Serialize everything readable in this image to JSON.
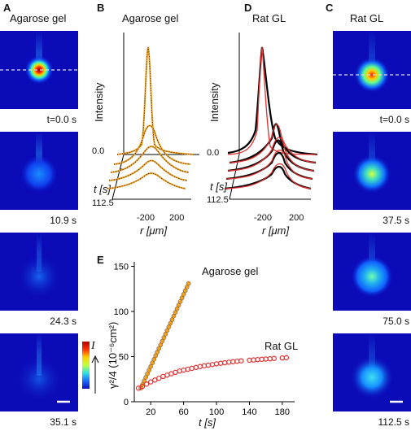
{
  "panels": {
    "A": {
      "label": "A",
      "title": "Agarose gel",
      "times": [
        "t=0.0 s",
        "10.9 s",
        "24.3 s",
        "35.1 s"
      ]
    },
    "B": {
      "label": "B",
      "title": "Agarose gel",
      "ylabel": "Intensity",
      "tlabel": "t [s]",
      "t0": "0.0",
      "tend": "112.5",
      "xticks": [
        "-200",
        "200"
      ],
      "xlabel": "r [μm]"
    },
    "D": {
      "label": "D",
      "title": "Rat GL",
      "ylabel": "Intensity",
      "tlabel": "t [s]",
      "t0": "0.0",
      "tend": "112.5",
      "xticks": [
        "-200",
        "200"
      ],
      "xlabel": "r [μm]"
    },
    "C": {
      "label": "C",
      "title": "Rat GL",
      "times": [
        "t=0.0 s",
        "37.5 s",
        "75.0 s",
        "112.5 s"
      ]
    },
    "E": {
      "label": "E",
      "series_labels": [
        "Agarose gel",
        "Rat GL"
      ]
    },
    "colorbar": {
      "label": "I"
    }
  },
  "chart_data": {
    "type": "scatter",
    "xlabel": "t [s]",
    "ylabel": "γ²/4 (10⁻⁶cm²)",
    "xticks": [
      "20",
      "60",
      "100",
      "140",
      "180"
    ],
    "yticks": [
      "0",
      "50",
      "100",
      "150"
    ],
    "xlim": [
      0,
      195
    ],
    "ylim": [
      0,
      155
    ],
    "series": [
      {
        "name": "Agarose gel",
        "color": "#f0a020",
        "x": [
          8,
          10,
          12,
          14,
          16,
          18,
          20,
          22,
          24,
          26,
          28,
          30,
          32,
          34,
          36,
          38,
          40,
          42,
          44,
          46,
          48,
          50,
          52,
          54,
          56,
          58,
          60,
          62,
          64,
          66
        ],
        "y": [
          15,
          19,
          23,
          27,
          31,
          35,
          39,
          43,
          47,
          51,
          55,
          59,
          63,
          67,
          71,
          75,
          79,
          83,
          87,
          91,
          95,
          99,
          103,
          107,
          111,
          115,
          119,
          123,
          127,
          131
        ]
      },
      {
        "name": "Rat GL",
        "color": "#e03030",
        "x": [
          5,
          10,
          15,
          20,
          25,
          30,
          35,
          40,
          45,
          50,
          55,
          60,
          65,
          70,
          75,
          80,
          85,
          90,
          95,
          100,
          105,
          110,
          115,
          120,
          125,
          130,
          140,
          145,
          150,
          155,
          160,
          165,
          170,
          180,
          185
        ],
        "y": [
          15,
          17,
          19.5,
          22,
          24,
          26,
          28,
          29.5,
          31,
          32.5,
          34,
          35,
          36,
          37,
          38,
          39,
          39.8,
          40.5,
          41.2,
          42,
          42.6,
          43.2,
          43.8,
          44.3,
          44.8,
          45.3,
          46,
          46.3,
          46.7,
          47,
          47.3,
          47.6,
          48,
          48.5,
          48.8
        ]
      }
    ]
  }
}
